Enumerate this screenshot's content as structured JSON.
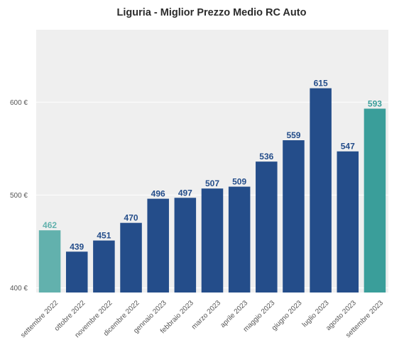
{
  "chart_data": {
    "type": "bar",
    "title": "Liguria - Miglior Prezzo Medio RC Auto",
    "xlabel": "",
    "ylabel": "",
    "ylim": [
      395,
      678
    ],
    "yticks": [
      400,
      500,
      600
    ],
    "ytick_labels": [
      "400 €",
      "500 €",
      "600 €"
    ],
    "categories": [
      "settembre 2022",
      "ottobre 2022",
      "novembre 2022",
      "dicembre 2022",
      "gennaio 2023",
      "febbraio 2023",
      "marzo 2023",
      "aprile 2023",
      "maggio 2023",
      "giugno 2023",
      "luglio 2023",
      "agosto 2023",
      "settembre 2023"
    ],
    "values": [
      462,
      439,
      451,
      470,
      496,
      497,
      507,
      509,
      536,
      559,
      615,
      547,
      593
    ],
    "value_labels": [
      "462",
      "439",
      "451",
      "470",
      "496",
      "497",
      "507",
      "509",
      "536",
      "559",
      "615",
      "547",
      "593"
    ],
    "bar_colors": [
      "#62b1ad",
      "#244d8a",
      "#244d8a",
      "#244d8a",
      "#244d8a",
      "#244d8a",
      "#244d8a",
      "#244d8a",
      "#244d8a",
      "#244d8a",
      "#244d8a",
      "#244d8a",
      "#3a9e9a"
    ],
    "label_colors": [
      "#62b1ad",
      "#244d8a",
      "#244d8a",
      "#244d8a",
      "#244d8a",
      "#244d8a",
      "#244d8a",
      "#244d8a",
      "#244d8a",
      "#244d8a",
      "#244d8a",
      "#244d8a",
      "#3a9e9a"
    ],
    "plot_background": "#efefef",
    "grid": true,
    "legend": false
  }
}
